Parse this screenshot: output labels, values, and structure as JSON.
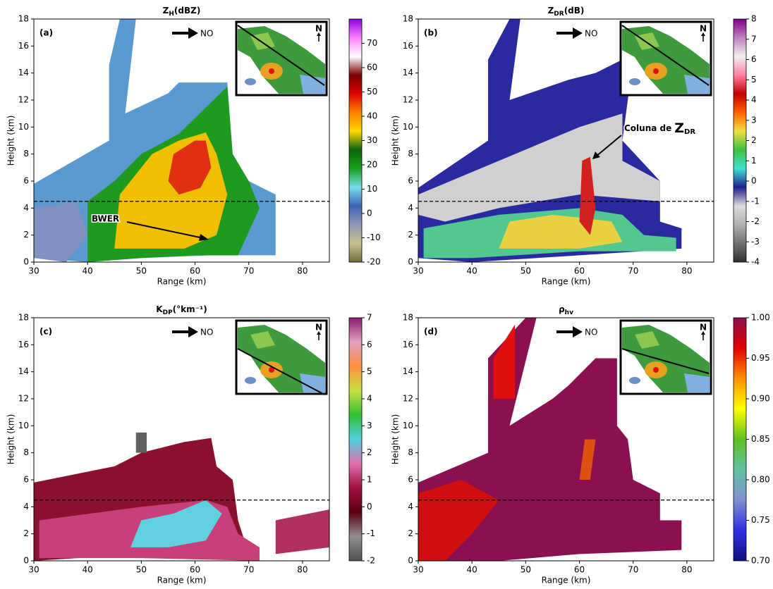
{
  "chart_data": [
    {
      "type": "rhi",
      "panel_label": "(a)",
      "title": {
        "symbol": "Z",
        "subscript": "H",
        "unit": "(dBZ)"
      },
      "xlabel": "Range (km)",
      "ylabel": "Height (km)",
      "xlim": [
        30,
        85
      ],
      "xticks": [
        30,
        40,
        50,
        60,
        70,
        80
      ],
      "ylim": [
        0,
        18
      ],
      "yticks": [
        0,
        2,
        4,
        6,
        8,
        10,
        12,
        14,
        16,
        18
      ],
      "reference_height": 4.5,
      "direction_label": "NO",
      "north_label": "N",
      "colorbar": {
        "lim": [
          -20,
          80
        ],
        "ticks": [
          -20,
          -10,
          0,
          10,
          20,
          30,
          40,
          50,
          60,
          70
        ],
        "colors": [
          "#6e6e3c",
          "#c8c08c",
          "#9098b8",
          "#3c64b4",
          "#78dcec",
          "#1aa01a",
          "#0c640c",
          "#ffd700",
          "#ff8000",
          "#e00000",
          "#780000",
          "#ffffff",
          "#ff80ff",
          "#8a00e6"
        ]
      },
      "annotation": {
        "text": "BWER"
      }
    },
    {
      "type": "rhi",
      "panel_label": "(b)",
      "title": {
        "symbol": "Z",
        "subscript": "DR",
        "unit": "(dB)"
      },
      "xlabel": "Range (km)",
      "ylabel": "Height (km)",
      "xlim": [
        30,
        85
      ],
      "xticks": [
        30,
        40,
        50,
        60,
        70,
        80
      ],
      "ylim": [
        0,
        18
      ],
      "yticks": [
        0,
        2,
        4,
        6,
        8,
        10,
        12,
        14,
        16,
        18
      ],
      "reference_height": 4.5,
      "direction_label": "NO",
      "north_label": "N",
      "colorbar": {
        "lim": [
          -4,
          8
        ],
        "ticks": [
          -4,
          -3,
          -2,
          -1,
          0,
          1,
          2,
          3,
          4,
          5,
          6,
          7,
          8
        ],
        "colors": [
          "#303030",
          "#707070",
          "#b0b0b0",
          "#dcdcdc",
          "#20208c",
          "#40e0d0",
          "#40c040",
          "#f0e040",
          "#ff6000",
          "#c00000",
          "#ff80a0",
          "#f0f0f0",
          "#c080c0",
          "#800080"
        ]
      },
      "annotation": {
        "text": "Coluna de",
        "symbol": "Z",
        "subscript": "DR"
      }
    },
    {
      "type": "rhi",
      "panel_label": "(c)",
      "title": {
        "symbol": "K",
        "subscript": "DP",
        "unit": "(°km⁻¹)"
      },
      "xlabel": "Range (km)",
      "ylabel": "Height (km)",
      "xlim": [
        30,
        85
      ],
      "xticks": [
        30,
        40,
        50,
        60,
        70,
        80
      ],
      "ylim": [
        0,
        18
      ],
      "yticks": [
        0,
        2,
        4,
        6,
        8,
        10,
        12,
        14,
        16,
        18
      ],
      "reference_height": 4.5,
      "direction_label": "NO",
      "north_label": "N",
      "colorbar": {
        "lim": [
          -2,
          7
        ],
        "ticks": [
          -2,
          -1,
          0,
          1,
          2,
          3,
          4,
          5,
          6,
          7
        ],
        "colors": [
          "#505050",
          "#909090",
          "#5a0010",
          "#a01040",
          "#e070b0",
          "#50d0e0",
          "#30c030",
          "#c8e040",
          "#ff9040",
          "#e0a0c0",
          "#8b1a6b"
        ]
      }
    },
    {
      "type": "rhi",
      "panel_label": "(d)",
      "title": {
        "symbol": "ρ",
        "subscript": "hv"
      },
      "xlabel": "Range (km)",
      "ylabel": "Height (km)",
      "xlim": [
        30,
        85
      ],
      "xticks": [
        30,
        40,
        50,
        60,
        70,
        80
      ],
      "ylim": [
        0,
        18
      ],
      "yticks": [
        0,
        2,
        4,
        6,
        8,
        10,
        12,
        14,
        16,
        18
      ],
      "reference_height": 4.5,
      "direction_label": "NO",
      "north_label": "N",
      "colorbar": {
        "lim": [
          0.7,
          1.0
        ],
        "ticks": [
          {
            "value": 0.7,
            "label": "0.70"
          },
          0.75,
          {
            "value": 0.8,
            "label": "0.80"
          },
          0.85,
          {
            "value": 0.9,
            "label": "0.90"
          },
          0.95,
          {
            "value": 1.0,
            "label": "1.00"
          }
        ],
        "colors": [
          "#101080",
          "#3030e0",
          "#8090d0",
          "#60c0a0",
          "#60c020",
          "#ffff00",
          "#ff9000",
          "#e00000",
          "#8b1050"
        ]
      }
    }
  ]
}
